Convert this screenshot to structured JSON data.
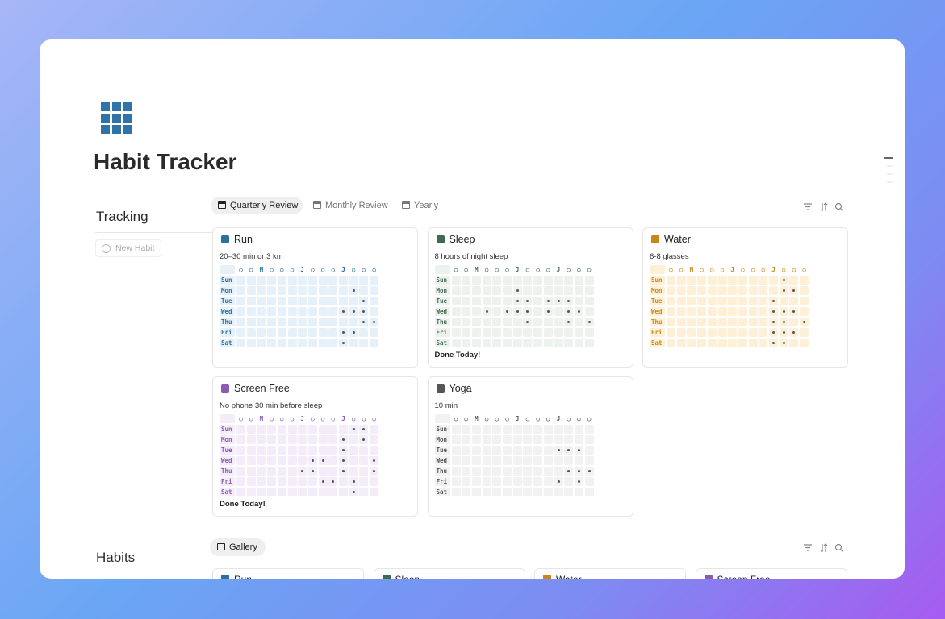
{
  "page": {
    "title": "Habit Tracker"
  },
  "tracking": {
    "heading": "Tracking",
    "new_button": "New Habit",
    "tabs": [
      "Quarterly Review",
      "Monthly Review",
      "Yearly"
    ]
  },
  "grid_header": [
    "○",
    "○",
    "M",
    "○",
    "○",
    "○",
    "J",
    "○",
    "○",
    "○",
    "J",
    "○",
    "○",
    "○"
  ],
  "days": [
    "Sun",
    "Mon",
    "Tue",
    "Wed",
    "Thu",
    "Fri",
    "Sat"
  ],
  "cards": [
    {
      "name": "Run",
      "subtitle": "20–30 min or 3 km",
      "color": "#2f6f9f",
      "cell": "#e6f0f9",
      "checks": [
        [
          0,
          0,
          0,
          0,
          0,
          0,
          0,
          0,
          0,
          0,
          0,
          0,
          0,
          0
        ],
        [
          0,
          0,
          0,
          0,
          0,
          0,
          0,
          0,
          0,
          0,
          0,
          1,
          0,
          0
        ],
        [
          0,
          0,
          0,
          0,
          0,
          0,
          0,
          0,
          0,
          0,
          0,
          0,
          1,
          0
        ],
        [
          0,
          0,
          0,
          0,
          0,
          0,
          0,
          0,
          0,
          0,
          1,
          1,
          1,
          0
        ],
        [
          0,
          0,
          0,
          0,
          0,
          0,
          0,
          0,
          0,
          0,
          0,
          0,
          1,
          1
        ],
        [
          0,
          0,
          0,
          0,
          0,
          0,
          0,
          0,
          0,
          0,
          1,
          1,
          0,
          0
        ],
        [
          0,
          0,
          0,
          0,
          0,
          0,
          0,
          0,
          0,
          0,
          1,
          0,
          0,
          0
        ]
      ]
    },
    {
      "name": "Sleep",
      "subtitle": "8 hours of night sleep",
      "status": "Done Today!",
      "color": "#3f6b4e",
      "cell": "#eef2ee",
      "checks": [
        [
          0,
          0,
          0,
          0,
          0,
          0,
          0,
          0,
          0,
          0,
          0,
          0,
          0,
          0
        ],
        [
          0,
          0,
          0,
          0,
          0,
          0,
          1,
          0,
          0,
          0,
          0,
          0,
          0,
          0
        ],
        [
          0,
          0,
          0,
          0,
          0,
          0,
          1,
          1,
          0,
          1,
          1,
          1,
          0,
          0
        ],
        [
          0,
          0,
          0,
          1,
          0,
          1,
          1,
          1,
          0,
          1,
          0,
          1,
          1,
          0
        ],
        [
          0,
          0,
          0,
          0,
          0,
          0,
          0,
          1,
          0,
          0,
          0,
          1,
          0,
          1
        ],
        [
          0,
          0,
          0,
          0,
          0,
          0,
          0,
          0,
          0,
          0,
          0,
          0,
          0,
          0
        ],
        [
          0,
          0,
          0,
          0,
          0,
          0,
          0,
          0,
          0,
          0,
          0,
          0,
          0,
          0
        ]
      ]
    },
    {
      "name": "Water",
      "subtitle": "6-8 glasses",
      "color": "#c9861a",
      "cell": "#fdf0d6",
      "checks": [
        [
          0,
          0,
          0,
          0,
          0,
          0,
          0,
          0,
          0,
          0,
          0,
          1,
          0,
          0
        ],
        [
          0,
          0,
          0,
          0,
          0,
          0,
          0,
          0,
          0,
          0,
          0,
          1,
          1,
          0
        ],
        [
          0,
          0,
          0,
          0,
          0,
          0,
          0,
          0,
          0,
          0,
          1,
          0,
          0,
          0
        ],
        [
          0,
          0,
          0,
          0,
          0,
          0,
          0,
          0,
          0,
          0,
          1,
          1,
          1,
          0
        ],
        [
          0,
          0,
          0,
          0,
          0,
          0,
          0,
          0,
          0,
          0,
          1,
          1,
          0,
          1
        ],
        [
          0,
          0,
          0,
          0,
          0,
          0,
          0,
          0,
          0,
          0,
          1,
          1,
          1,
          0
        ],
        [
          0,
          0,
          0,
          0,
          0,
          0,
          0,
          0,
          0,
          0,
          1,
          1,
          0,
          0
        ]
      ]
    },
    {
      "name": "Screen Free",
      "subtitle": "No phone 30 min before sleep",
      "status": "Done Today!",
      "color": "#8a5bb0",
      "cell": "#f4edf9",
      "checks": [
        [
          0,
          0,
          0,
          0,
          0,
          0,
          0,
          0,
          0,
          0,
          0,
          1,
          1,
          0
        ],
        [
          0,
          0,
          0,
          0,
          0,
          0,
          0,
          0,
          0,
          0,
          1,
          0,
          1,
          0
        ],
        [
          0,
          0,
          0,
          0,
          0,
          0,
          0,
          0,
          0,
          0,
          1,
          0,
          0,
          0
        ],
        [
          0,
          0,
          0,
          0,
          0,
          0,
          0,
          1,
          1,
          0,
          1,
          0,
          0,
          1
        ],
        [
          0,
          0,
          0,
          0,
          0,
          0,
          1,
          1,
          0,
          0,
          1,
          0,
          0,
          1
        ],
        [
          0,
          0,
          0,
          0,
          0,
          0,
          0,
          0,
          1,
          1,
          0,
          1,
          0,
          0
        ],
        [
          0,
          0,
          0,
          0,
          0,
          0,
          0,
          0,
          0,
          0,
          0,
          1,
          0,
          0
        ]
      ]
    },
    {
      "name": "Yoga",
      "subtitle": "10 min",
      "color": "#555555",
      "cell": "#f2f2f2",
      "checks": [
        [
          0,
          0,
          0,
          0,
          0,
          0,
          0,
          0,
          0,
          0,
          0,
          0,
          0,
          0
        ],
        [
          0,
          0,
          0,
          0,
          0,
          0,
          0,
          0,
          0,
          0,
          0,
          0,
          0,
          0
        ],
        [
          0,
          0,
          0,
          0,
          0,
          0,
          0,
          0,
          0,
          0,
          1,
          1,
          1,
          0
        ],
        [
          0,
          0,
          0,
          0,
          0,
          0,
          0,
          0,
          0,
          0,
          0,
          0,
          0,
          0
        ],
        [
          0,
          0,
          0,
          0,
          0,
          0,
          0,
          0,
          0,
          0,
          0,
          1,
          1,
          1
        ],
        [
          0,
          0,
          0,
          0,
          0,
          0,
          0,
          0,
          0,
          0,
          1,
          0,
          1,
          0
        ],
        [
          0,
          0,
          0,
          0,
          0,
          0,
          0,
          0,
          0,
          0,
          0,
          0,
          0,
          0
        ]
      ]
    }
  ],
  "habits": {
    "heading": "Habits",
    "tab": "Gallery",
    "cards": [
      "Run",
      "Sleep",
      "Water",
      "Screen Free"
    ]
  }
}
